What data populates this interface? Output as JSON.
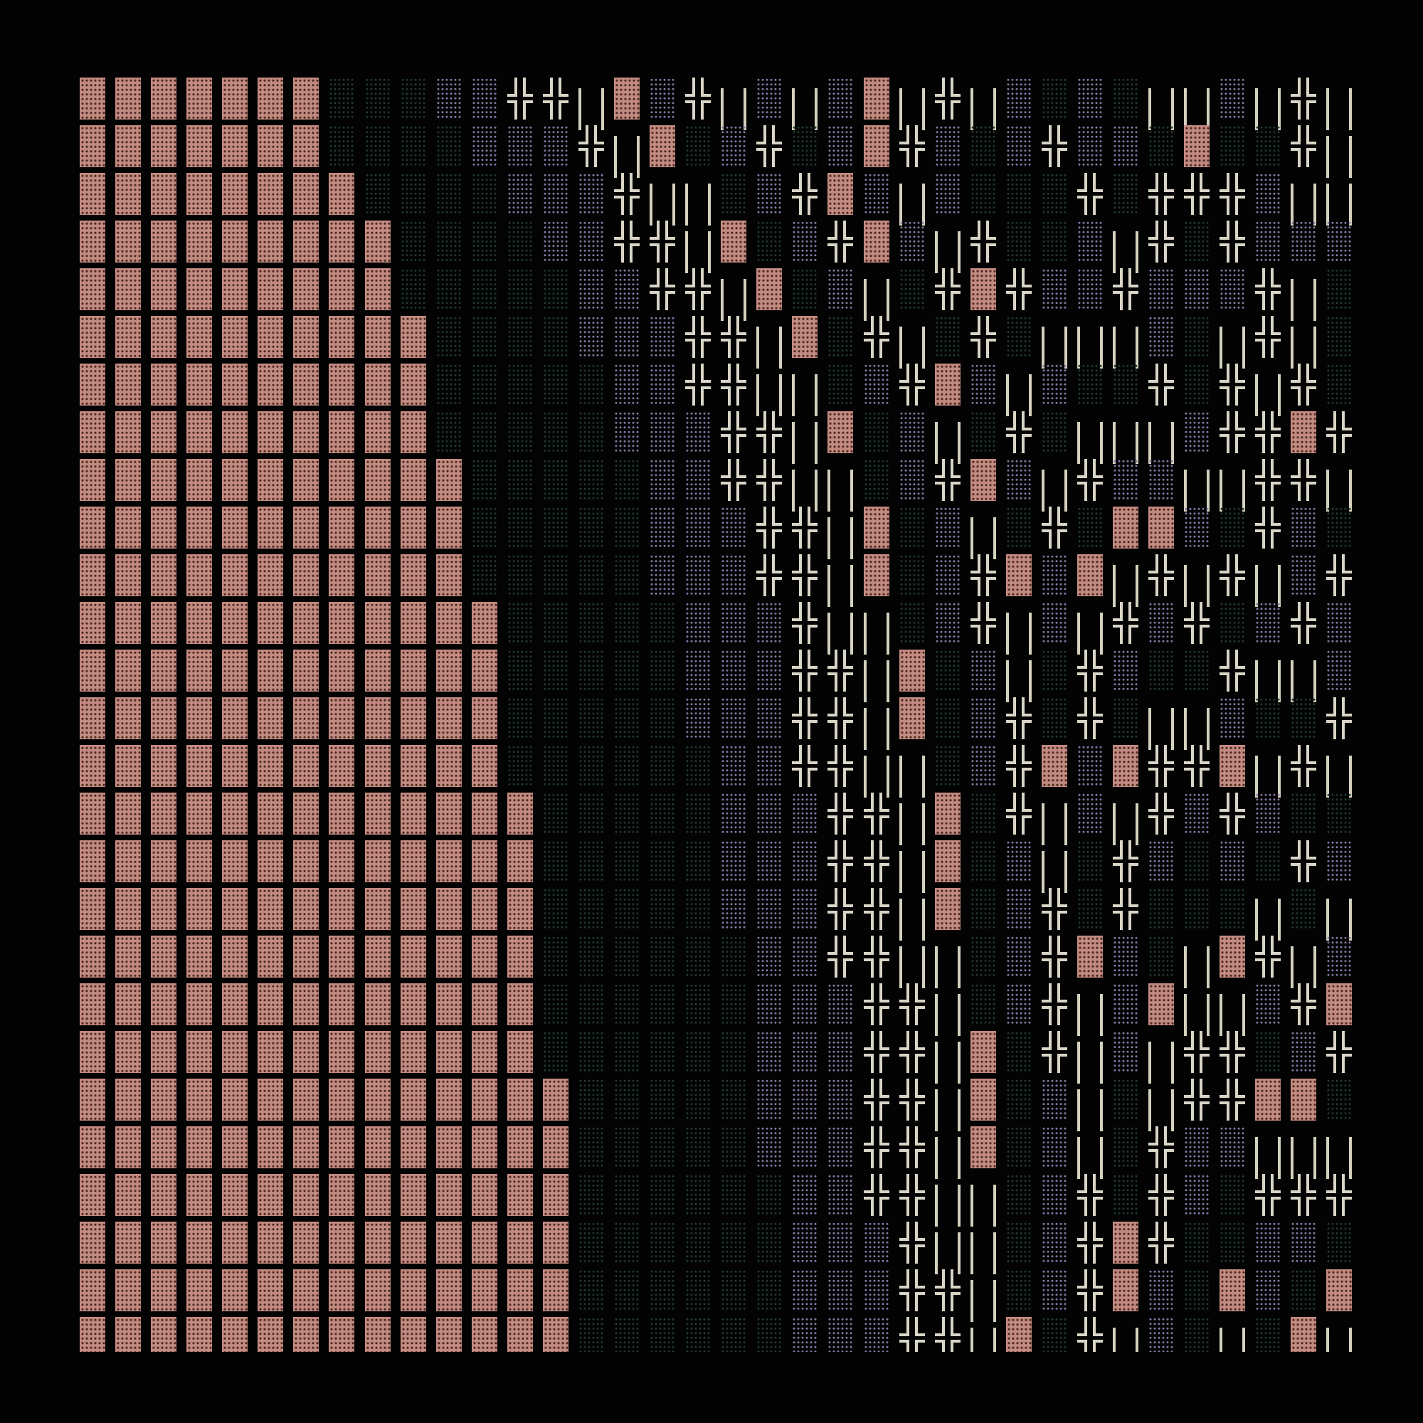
{
  "palette": {
    "background": "#030303",
    "dense_block": "#c38a80",
    "medium_shade": "#8577a4",
    "light_shade": "#1f3a2d",
    "box_lines": "#d8d4c6"
  },
  "glyph_legend": {
    "▓": "dense-block",
    "▒": "medium-shade",
    "░": "light-shade",
    "╬": "double-cross",
    "║": "double-vertical"
  },
  "rows": [
    "▓▓▓▓▓▓▓░░░▒▒╬╬║▓▒╬║▒║▒▓║╬║▒░▒░║║▒║╬║",
    "▓▓▓▓▓▓▓░░░░▒▒▒╬║▓░▒╬░▒▓╬▒░▒╬▒▒░▓░░╬║",
    "▓▓▓▓▓▓▓▓░░░░▒▒▒╬║║░▒╬▓▒║▒░░░╬░╬╬╬▒║║",
    "▓▓▓▓▓▓▓▓▓░░░░▒▒╬╬║▓░▒╬▓▒║╬░░▒║╬░╬▒▒▒",
    "▓▓▓▓▓▓▓▓▓░░░░░▒▒╬╬║▓░▒║░╬▓╬▒▒╬▒▒▒╬║░",
    "▓▓▓▓▓▓▓▓▓▓░░░░▒▒▒╬╬║▓░╬║░╬░║║║▒░║╬║░",
    "▓▓▓▓▓▓▓▓▓▓░░░░░▒▒╬╬║║░▒╬▓▒║▒░░╬░╬║╬░",
    "▓▓▓▓▓▓▓▓▓▓░░░░░▒▒▒╬╬║▓░▒║░╬░║║║▒╬╬▓╬",
    "▓▓▓▓▓▓▓▓▓▓▓░░░░░▒▒╬╬║║░▒╬▓▒║╬▒▒║║╬╬║",
    "▓▓▓▓▓▓▓▓▓▓▓░░░░░▒▒▒╬╬║▓░▒║░╬░▓▓▒░╬▒░",
    "▓▓▓▓▓▓▓▓▓▓▓░░░░░▒▒▒╬╬║▓░▒╬▓▒▓║╬║╬║▒╬",
    "▓▓▓▓▓▓▓▓▓▓▓▓░░░░░▒▒▒╬║║░▒╬║▒║╬▒╬░▒╬▒",
    "▓▓▓▓▓▓▓▓▓▓▓▓░░░░░▒▒▒╬╬║▓░▒║░╬▒░░╬║║▒",
    "▓▓▓▓▓▓▓▓▓▓▓▓░░░░░▒▒▒╬╬║▓░▒╬░╬░║║▒░░╬",
    "▓▓▓▓▓▓▓▓▓▓▓▓░░░░░░▒▒╬╬║║░▒╬▓▒▓╬╬▓║╬║",
    "▓▓▓▓▓▓▓▓▓▓▓▓▓░░░░░▒▒▒╬╬║▓░╬║▒║╬▒╬▒░░",
    "▓▓▓▓▓▓▓▓▓▓▓▓▓░░░░░▒▒▒╬╬║▓░▒║░╬▒░▒░╬▒",
    "▓▓▓▓▓▓▓▓▓▓▓▓▓░░░░░▒▒▒╬╬║▓░▒╬░╬░░░║░║",
    "▓▓▓▓▓▓▓▓▓▓▓▓▓░░░░░░▒▒╬╬║║░▒╬▓▒░║▓╬║▒",
    "▓▓▓▓▓▓▓▓▓▓▓▓▓░░░░░░▒▒▒╬╬║░▒╬║▒▓║║▒╬▓",
    "▓▓▓▓▓▓▓▓▓▓▓▓▓░░░░░░▒▒▒╬╬║▓░╬║▒║╬╬░▒╬",
    "▓▓▓▓▓▓▓▓▓▓▓▓▓▓░░░░░▒▒▒╬╬║▓░▒║░║╬╬▓▓░",
    "▓▓▓▓▓▓▓▓▓▓▓▓▓▓░░░░░▒▒▒╬╬║▓░▒║░╬▒▒║║║",
    "▓▓▓▓▓▓▓▓▓▓▓▓▓▓░░░░░░▒▒╬╬║║░▒╬░╬▒░╬╬╬",
    "▓▓▓▓▓▓▓▓▓▓▓▓▓▓░░░░░░▒▒▒╬║║░▒╬▓╬░░▒▒░",
    "▓▓▓▓▓▓▓▓▓▓▓▓▓▓░░░░░░▒▒▒╬╬║░▒╬▓▒░▓▒░▓",
    "▓▓▓▓▓▓▓▓▓▓▓▓▓▓░░░░░░▒▒▒╬╬║▓░╬║▒░║░▓║"
  ]
}
